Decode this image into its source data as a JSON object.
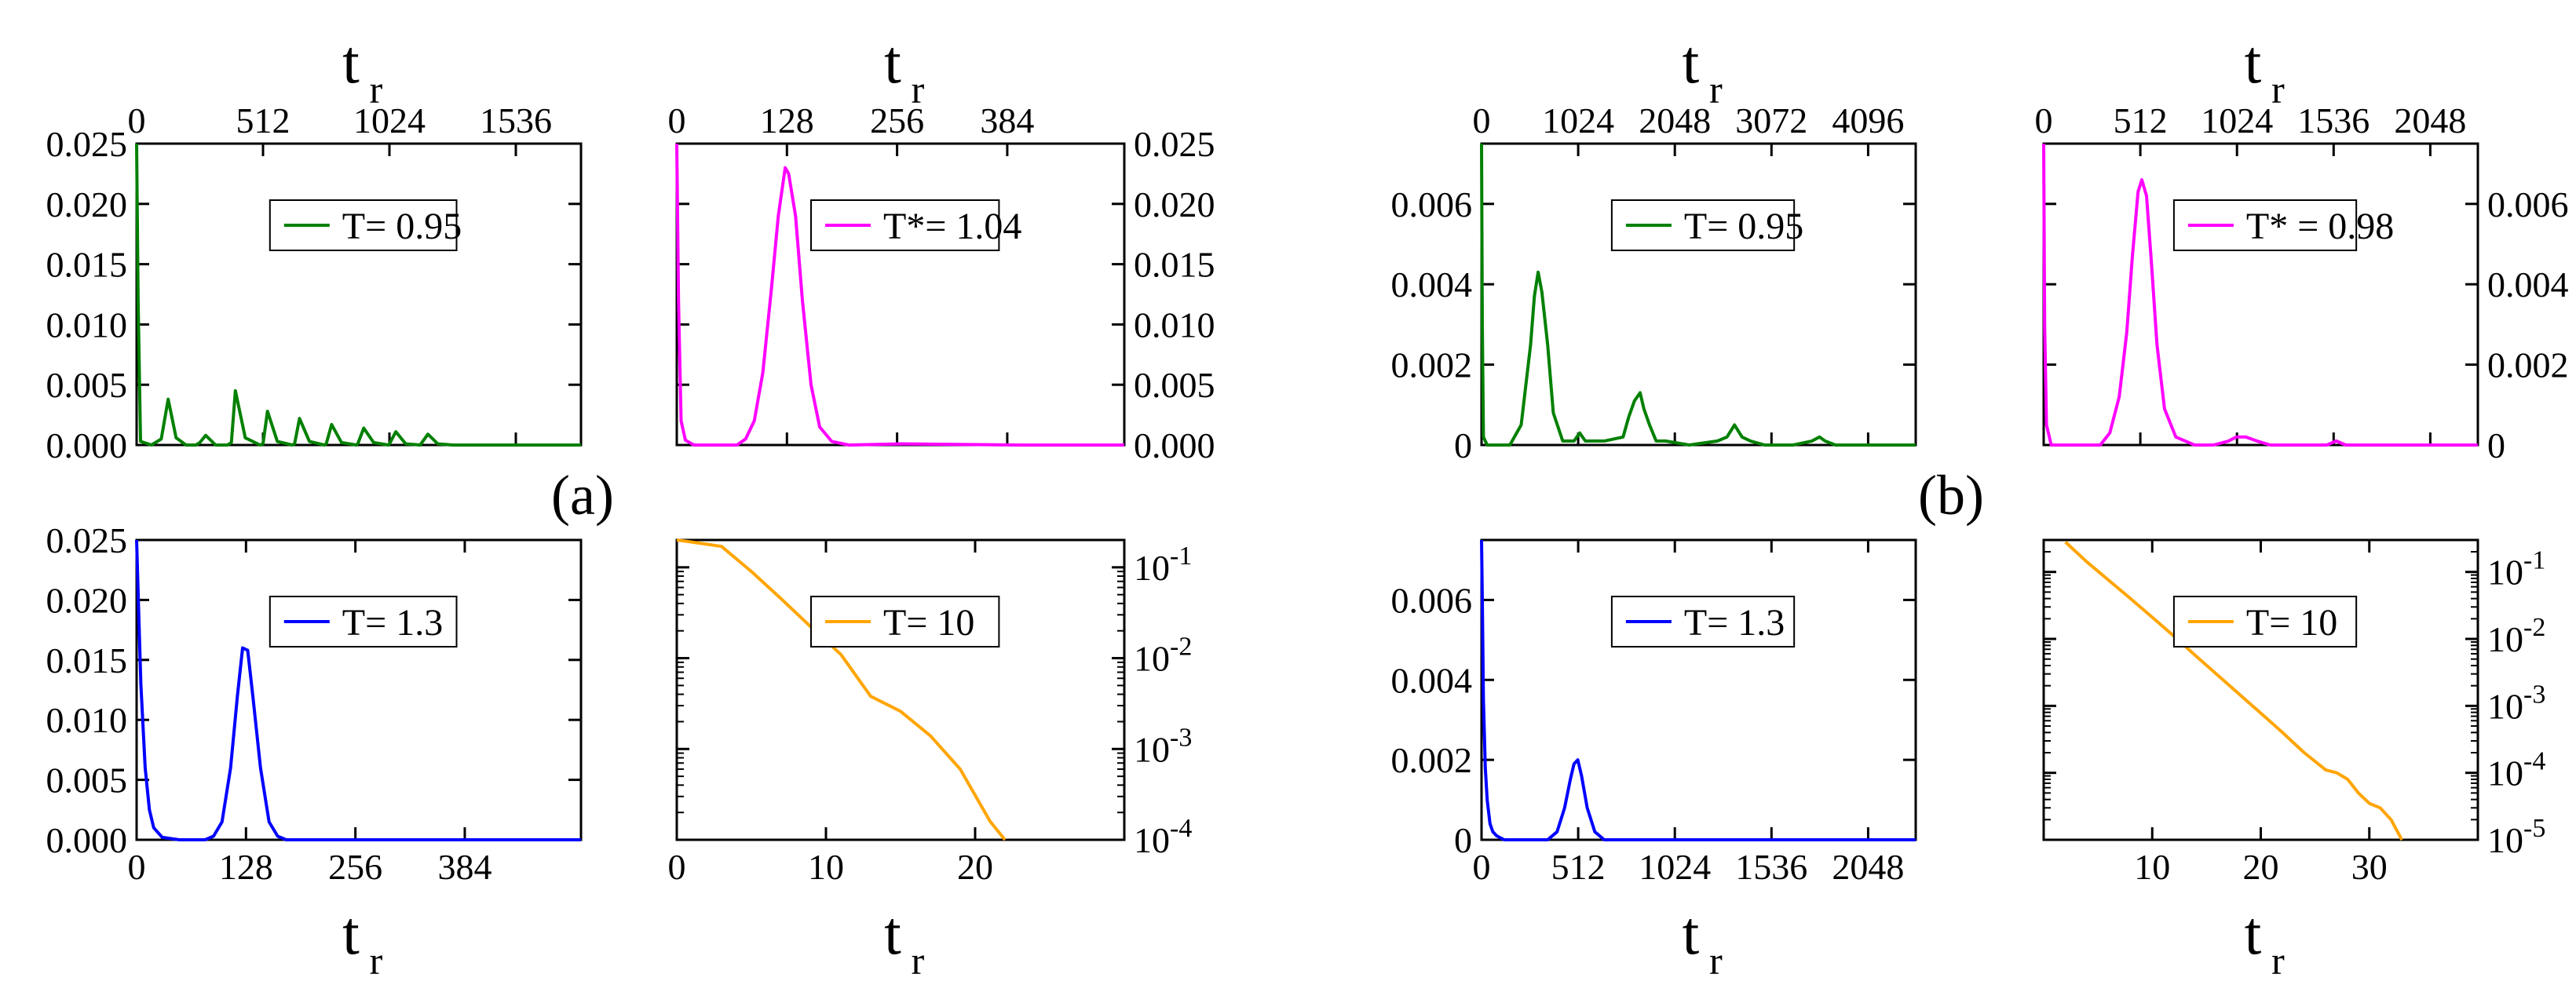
{
  "panel_labels": [
    "(a)",
    "(b)"
  ],
  "axis_label": {
    "main": "t",
    "sub": "r"
  },
  "chart_data": [
    {
      "id": "a-tl",
      "type": "line",
      "legend": "T= 0.95",
      "color": "#008000",
      "xlim": [
        0,
        1800
      ],
      "ylim": [
        0,
        0.025
      ],
      "xticks": [
        0,
        512,
        1024,
        1536
      ],
      "xtick_labels": [
        "0",
        "512",
        "1024",
        "1536"
      ],
      "yticks": [
        0,
        0.005,
        0.01,
        0.015,
        0.02,
        0.025
      ],
      "ytick_labels": [
        "0.000",
        "0.005",
        "0.010",
        "0.015",
        "0.020",
        "0.025"
      ],
      "x_axis": "top",
      "y_axis": "left",
      "xlabel": "t_r",
      "series": [
        {
          "name": "T= 0.95",
          "x": [
            0,
            6,
            16,
            60,
            100,
            128,
            160,
            200,
            240,
            256,
            280,
            320,
            368,
            384,
            400,
            440,
            500,
            512,
            530,
            570,
            630,
            640,
            660,
            700,
            760,
            768,
            790,
            830,
            890,
            896,
            920,
            960,
            1020,
            1024,
            1050,
            1090,
            1150,
            1152,
            1180,
            1220,
            1280,
            1290,
            1320,
            1360,
            1408,
            1420,
            1450,
            1500,
            1536,
            1600,
            1700,
            1800
          ],
          "y": [
            0.025,
            0.012,
            0.0003,
            0,
            0.0005,
            0.0038,
            0.0006,
            0,
            0,
            0.0002,
            0.0008,
            0,
            0,
            0.0002,
            0.0045,
            0.0006,
            0,
            0.0001,
            0.0028,
            0.0003,
            0,
            0.0001,
            0.0022,
            0.0003,
            0,
            0.0001,
            0.0017,
            0.0002,
            0,
            0.0001,
            0.0014,
            0.0002,
            0,
            0.0001,
            0.0011,
            0.0001,
            0,
            0.0001,
            0.0009,
            0.0001,
            0,
            0,
            0,
            0,
            0,
            0,
            0,
            0,
            0,
            0,
            0,
            0
          ]
        }
      ]
    },
    {
      "id": "a-tr",
      "type": "line",
      "legend": "T*= 1.04",
      "color": "#ff00ff",
      "xlim": [
        0,
        520
      ],
      "ylim": [
        0,
        0.025
      ],
      "xticks": [
        0,
        128,
        256,
        384
      ],
      "xtick_labels": [
        "0",
        "128",
        "256",
        "384"
      ],
      "yticks": [
        0,
        0.005,
        0.01,
        0.015,
        0.02,
        0.025
      ],
      "ytick_labels": [
        "0.000",
        "0.005",
        "0.010",
        "0.015",
        "0.020",
        "0.025"
      ],
      "x_axis": "top",
      "y_axis": "right",
      "xlabel": "t_r",
      "series": [
        {
          "name": "T*= 1.04",
          "x": [
            0,
            2,
            5,
            10,
            20,
            40,
            70,
            80,
            90,
            100,
            110,
            118,
            126,
            130,
            138,
            146,
            156,
            166,
            180,
            200,
            260,
            400,
            520
          ],
          "y": [
            0.025,
            0.012,
            0.002,
            0.0004,
            0,
            0,
            0,
            0.0005,
            0.002,
            0.006,
            0.013,
            0.019,
            0.023,
            0.0225,
            0.019,
            0.012,
            0.005,
            0.0015,
            0.0003,
            0,
            0.0001,
            0,
            0
          ]
        }
      ]
    },
    {
      "id": "a-bl",
      "type": "line",
      "legend": "T= 1.3",
      "color": "#0000ff",
      "xlim": [
        0,
        520
      ],
      "ylim": [
        0,
        0.025
      ],
      "xticks": [
        0,
        128,
        256,
        384
      ],
      "xtick_labels": [
        "0",
        "128",
        "256",
        "384"
      ],
      "yticks": [
        0,
        0.005,
        0.01,
        0.015,
        0.02,
        0.025
      ],
      "ytick_labels": [
        "0.000",
        "0.005",
        "0.010",
        "0.015",
        "0.020",
        "0.025"
      ],
      "x_axis": "bottom",
      "y_axis": "left",
      "xlabel": "t_r",
      "series": [
        {
          "name": "T= 1.3",
          "x": [
            0,
            2,
            5,
            10,
            15,
            20,
            30,
            50,
            80,
            90,
            100,
            110,
            118,
            124,
            130,
            136,
            145,
            155,
            165,
            175,
            200,
            520
          ],
          "y": [
            0.025,
            0.02,
            0.013,
            0.006,
            0.0025,
            0.001,
            0.0002,
            0,
            0,
            0.0003,
            0.0015,
            0.006,
            0.012,
            0.016,
            0.0158,
            0.012,
            0.006,
            0.0015,
            0.0003,
            0,
            0,
            0
          ]
        }
      ]
    },
    {
      "id": "a-br",
      "type": "line",
      "legend": "T= 10",
      "color": "#ffa500",
      "xlim": [
        0,
        30
      ],
      "ylim": [
        0.0001,
        0.2
      ],
      "yscale": "log",
      "xticks": [
        0,
        10,
        20
      ],
      "xtick_labels": [
        "0",
        "10",
        "20"
      ],
      "yticks": [
        0.1,
        0.01,
        0.001,
        0.0001
      ],
      "ytick_labels": [
        "10",
        "10",
        "10",
        "10"
      ],
      "ytick_exponents": [
        "-1",
        "-2",
        "-3",
        "-4"
      ],
      "x_axis": "bottom",
      "y_axis": "right",
      "xlabel": "t_r",
      "series": [
        {
          "name": "T= 10",
          "x": [
            0,
            1,
            3,
            5,
            7,
            9,
            11,
            13,
            15,
            17,
            19,
            21,
            22
          ],
          "y": [
            0.2,
            0.19,
            0.17,
            0.09,
            0.045,
            0.022,
            0.011,
            0.0038,
            0.0026,
            0.0014,
            0.0006,
            0.00016,
            0.0001
          ]
        }
      ]
    },
    {
      "id": "b-tl",
      "type": "line",
      "legend": "T= 0.95",
      "color": "#008000",
      "xlim": [
        0,
        4600
      ],
      "ylim": [
        0,
        0.0075
      ],
      "xticks": [
        0,
        1024,
        2048,
        3072,
        4096
      ],
      "xtick_labels": [
        "0",
        "1024",
        "2048",
        "3072",
        "4096"
      ],
      "yticks": [
        0,
        0.002,
        0.004,
        0.006
      ],
      "ytick_labels": [
        "0",
        "0.002",
        "0.004",
        "0.006"
      ],
      "x_axis": "top",
      "y_axis": "left",
      "xlabel": "t_r",
      "series": [
        {
          "name": "T= 0.95",
          "x": [
            0,
            8,
            20,
            60,
            300,
            420,
            520,
            560,
            600,
            640,
            700,
            760,
            860,
            980,
            1040,
            1100,
            1300,
            1500,
            1560,
            1620,
            1680,
            1720,
            1780,
            1850,
            1950,
            2200,
            2500,
            2600,
            2680,
            2760,
            2850,
            3000,
            3300,
            3500,
            3580,
            3640,
            3750,
            4100,
            4600
          ],
          "y": [
            0.0075,
            0.003,
            0.0002,
            0,
            0,
            0.0005,
            0.0025,
            0.0037,
            0.0043,
            0.0038,
            0.0025,
            0.0008,
            0.0001,
            0.0001,
            0.0003,
            0.0001,
            0.0001,
            0.0002,
            0.0007,
            0.0011,
            0.0013,
            0.0009,
            0.0005,
            0.0001,
            0.0001,
            0,
            0.0001,
            0.0002,
            0.0005,
            0.0002,
            0.0001,
            0,
            0,
            0.0001,
            0.0002,
            0.0001,
            0,
            0,
            0
          ]
        }
      ]
    },
    {
      "id": "b-tr",
      "type": "line",
      "legend": "T* = 0.98",
      "color": "#ff00ff",
      "xlim": [
        0,
        2300
      ],
      "ylim": [
        0,
        0.0075
      ],
      "xticks": [
        0,
        512,
        1024,
        1536,
        2048
      ],
      "xtick_labels": [
        "0",
        "512",
        "1024",
        "1536",
        "2048"
      ],
      "yticks": [
        0,
        0.002,
        0.004,
        0.006
      ],
      "ytick_labels": [
        "0",
        "0.002",
        "0.004",
        "0.006"
      ],
      "x_axis": "top",
      "y_axis": "right",
      "xlabel": "t_r",
      "series": [
        {
          "name": "T* = 0.98",
          "x": [
            0,
            5,
            15,
            40,
            300,
            350,
            400,
            440,
            470,
            500,
            520,
            545,
            570,
            600,
            640,
            700,
            800,
            900,
            980,
            1020,
            1070,
            1130,
            1200,
            1500,
            1550,
            1600,
            2300
          ],
          "y": [
            0.0075,
            0.003,
            0.0005,
            0,
            0,
            0.0003,
            0.0012,
            0.0028,
            0.0047,
            0.0063,
            0.0066,
            0.0062,
            0.0046,
            0.0025,
            0.0009,
            0.0002,
            0,
            0,
            0.0001,
            0.0002,
            0.0002,
            0.0001,
            0,
            0,
            0.0001,
            0,
            0
          ]
        }
      ]
    },
    {
      "id": "b-bl",
      "type": "line",
      "legend": "T= 1.3",
      "color": "#0000ff",
      "xlim": [
        0,
        2300
      ],
      "ylim": [
        0,
        0.0075
      ],
      "xticks": [
        0,
        512,
        1024,
        1536,
        2048
      ],
      "xtick_labels": [
        "0",
        "512",
        "1024",
        "1536",
        "2048"
      ],
      "yticks": [
        0,
        0.002,
        0.004,
        0.006
      ],
      "ytick_labels": [
        "0",
        "0.002",
        "0.004",
        "0.006"
      ],
      "x_axis": "bottom",
      "y_axis": "left",
      "xlabel": "t_r",
      "series": [
        {
          "name": "T= 1.3",
          "x": [
            0,
            4,
            10,
            20,
            30,
            45,
            60,
            80,
            120,
            350,
            400,
            440,
            470,
            490,
            510,
            530,
            560,
            600,
            650,
            1000,
            1100,
            2300
          ],
          "y": [
            0.0075,
            0.006,
            0.0035,
            0.0018,
            0.001,
            0.0004,
            0.0002,
            0.0001,
            0,
            0,
            0.0002,
            0.0008,
            0.0015,
            0.0019,
            0.002,
            0.0016,
            0.0008,
            0.0002,
            0,
            0,
            0,
            0
          ]
        }
      ]
    },
    {
      "id": "b-br",
      "type": "line",
      "legend": "T= 10",
      "color": "#ffa500",
      "xlim": [
        0,
        40
      ],
      "ylim": [
        1e-05,
        0.3
      ],
      "yscale": "log",
      "xticks": [
        10,
        20,
        30
      ],
      "xtick_labels": [
        "10",
        "20",
        "30"
      ],
      "yticks": [
        0.1,
        0.01,
        0.001,
        0.0001,
        1e-05
      ],
      "ytick_labels": [
        "10",
        "10",
        "10",
        "10",
        "10"
      ],
      "ytick_exponents": [
        "-1",
        "-2",
        "-3",
        "-4",
        "-5"
      ],
      "x_axis": "bottom",
      "y_axis": "right",
      "xlabel": "t_r",
      "series": [
        {
          "name": "T= 10",
          "x": [
            2,
            4,
            6,
            8,
            10,
            12,
            14,
            16,
            18,
            20,
            22,
            24,
            26,
            27,
            28,
            29,
            30,
            31,
            32,
            33
          ],
          "y": [
            0.28,
            0.14,
            0.075,
            0.04,
            0.021,
            0.011,
            0.0056,
            0.0029,
            0.0015,
            0.00078,
            0.0004,
            0.0002,
            0.00011,
            0.0001,
            8e-05,
            5e-05,
            3.5e-05,
            3e-05,
            2e-05,
            1e-05
          ]
        }
      ]
    }
  ]
}
